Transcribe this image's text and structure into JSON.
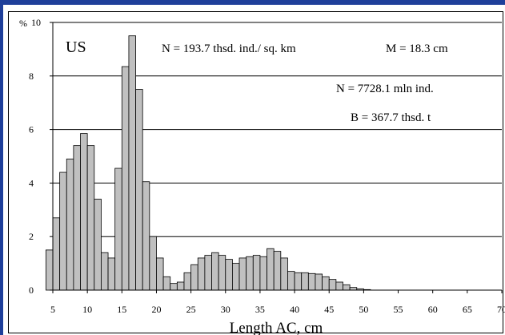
{
  "chart_data": {
    "type": "bar",
    "ylabel_unit": "%",
    "xlabel": "Length AC, cm",
    "xlim": [
      5,
      70
    ],
    "ylim": [
      0,
      10
    ],
    "x_ticks": [
      "5",
      "10",
      "15",
      "20",
      "25",
      "30",
      "35",
      "40",
      "45",
      "50",
      "55",
      "60",
      "65",
      "70"
    ],
    "y_ticks": [
      "0",
      "2",
      "4",
      "6",
      "8",
      "10"
    ],
    "grid": true,
    "bar_color": "#c0c0c0",
    "x": [
      5,
      6,
      7,
      8,
      9,
      10,
      11,
      12,
      13,
      14,
      15,
      16,
      17,
      18,
      19,
      20,
      21,
      22,
      23,
      24,
      25,
      26,
      27,
      28,
      29,
      30,
      31,
      32,
      33,
      34,
      35,
      36,
      37,
      38,
      39,
      40,
      41,
      42,
      43,
      44,
      45,
      46,
      47,
      48,
      49,
      50,
      51
    ],
    "values": [
      1.5,
      2.7,
      4.4,
      4.9,
      5.4,
      5.85,
      5.4,
      3.4,
      1.4,
      1.2,
      4.55,
      8.35,
      9.5,
      7.5,
      4.05,
      2.0,
      1.2,
      0.5,
      0.25,
      0.3,
      0.65,
      0.95,
      1.2,
      1.3,
      1.4,
      1.3,
      1.15,
      1.0,
      1.2,
      1.25,
      1.3,
      1.25,
      1.55,
      1.45,
      1.2,
      0.7,
      0.65,
      0.65,
      0.62,
      0.6,
      0.5,
      0.4,
      0.3,
      0.2,
      0.1,
      0.05,
      0.02
    ],
    "annotations": {
      "label": "US",
      "n_density": "N = 193.7 thsd. ind./ sq. km",
      "mean": "M = 18.3 cm",
      "n_total": "N = 7728.1 mln ind.",
      "biomass": "B = 367.7 thsd. t"
    }
  }
}
